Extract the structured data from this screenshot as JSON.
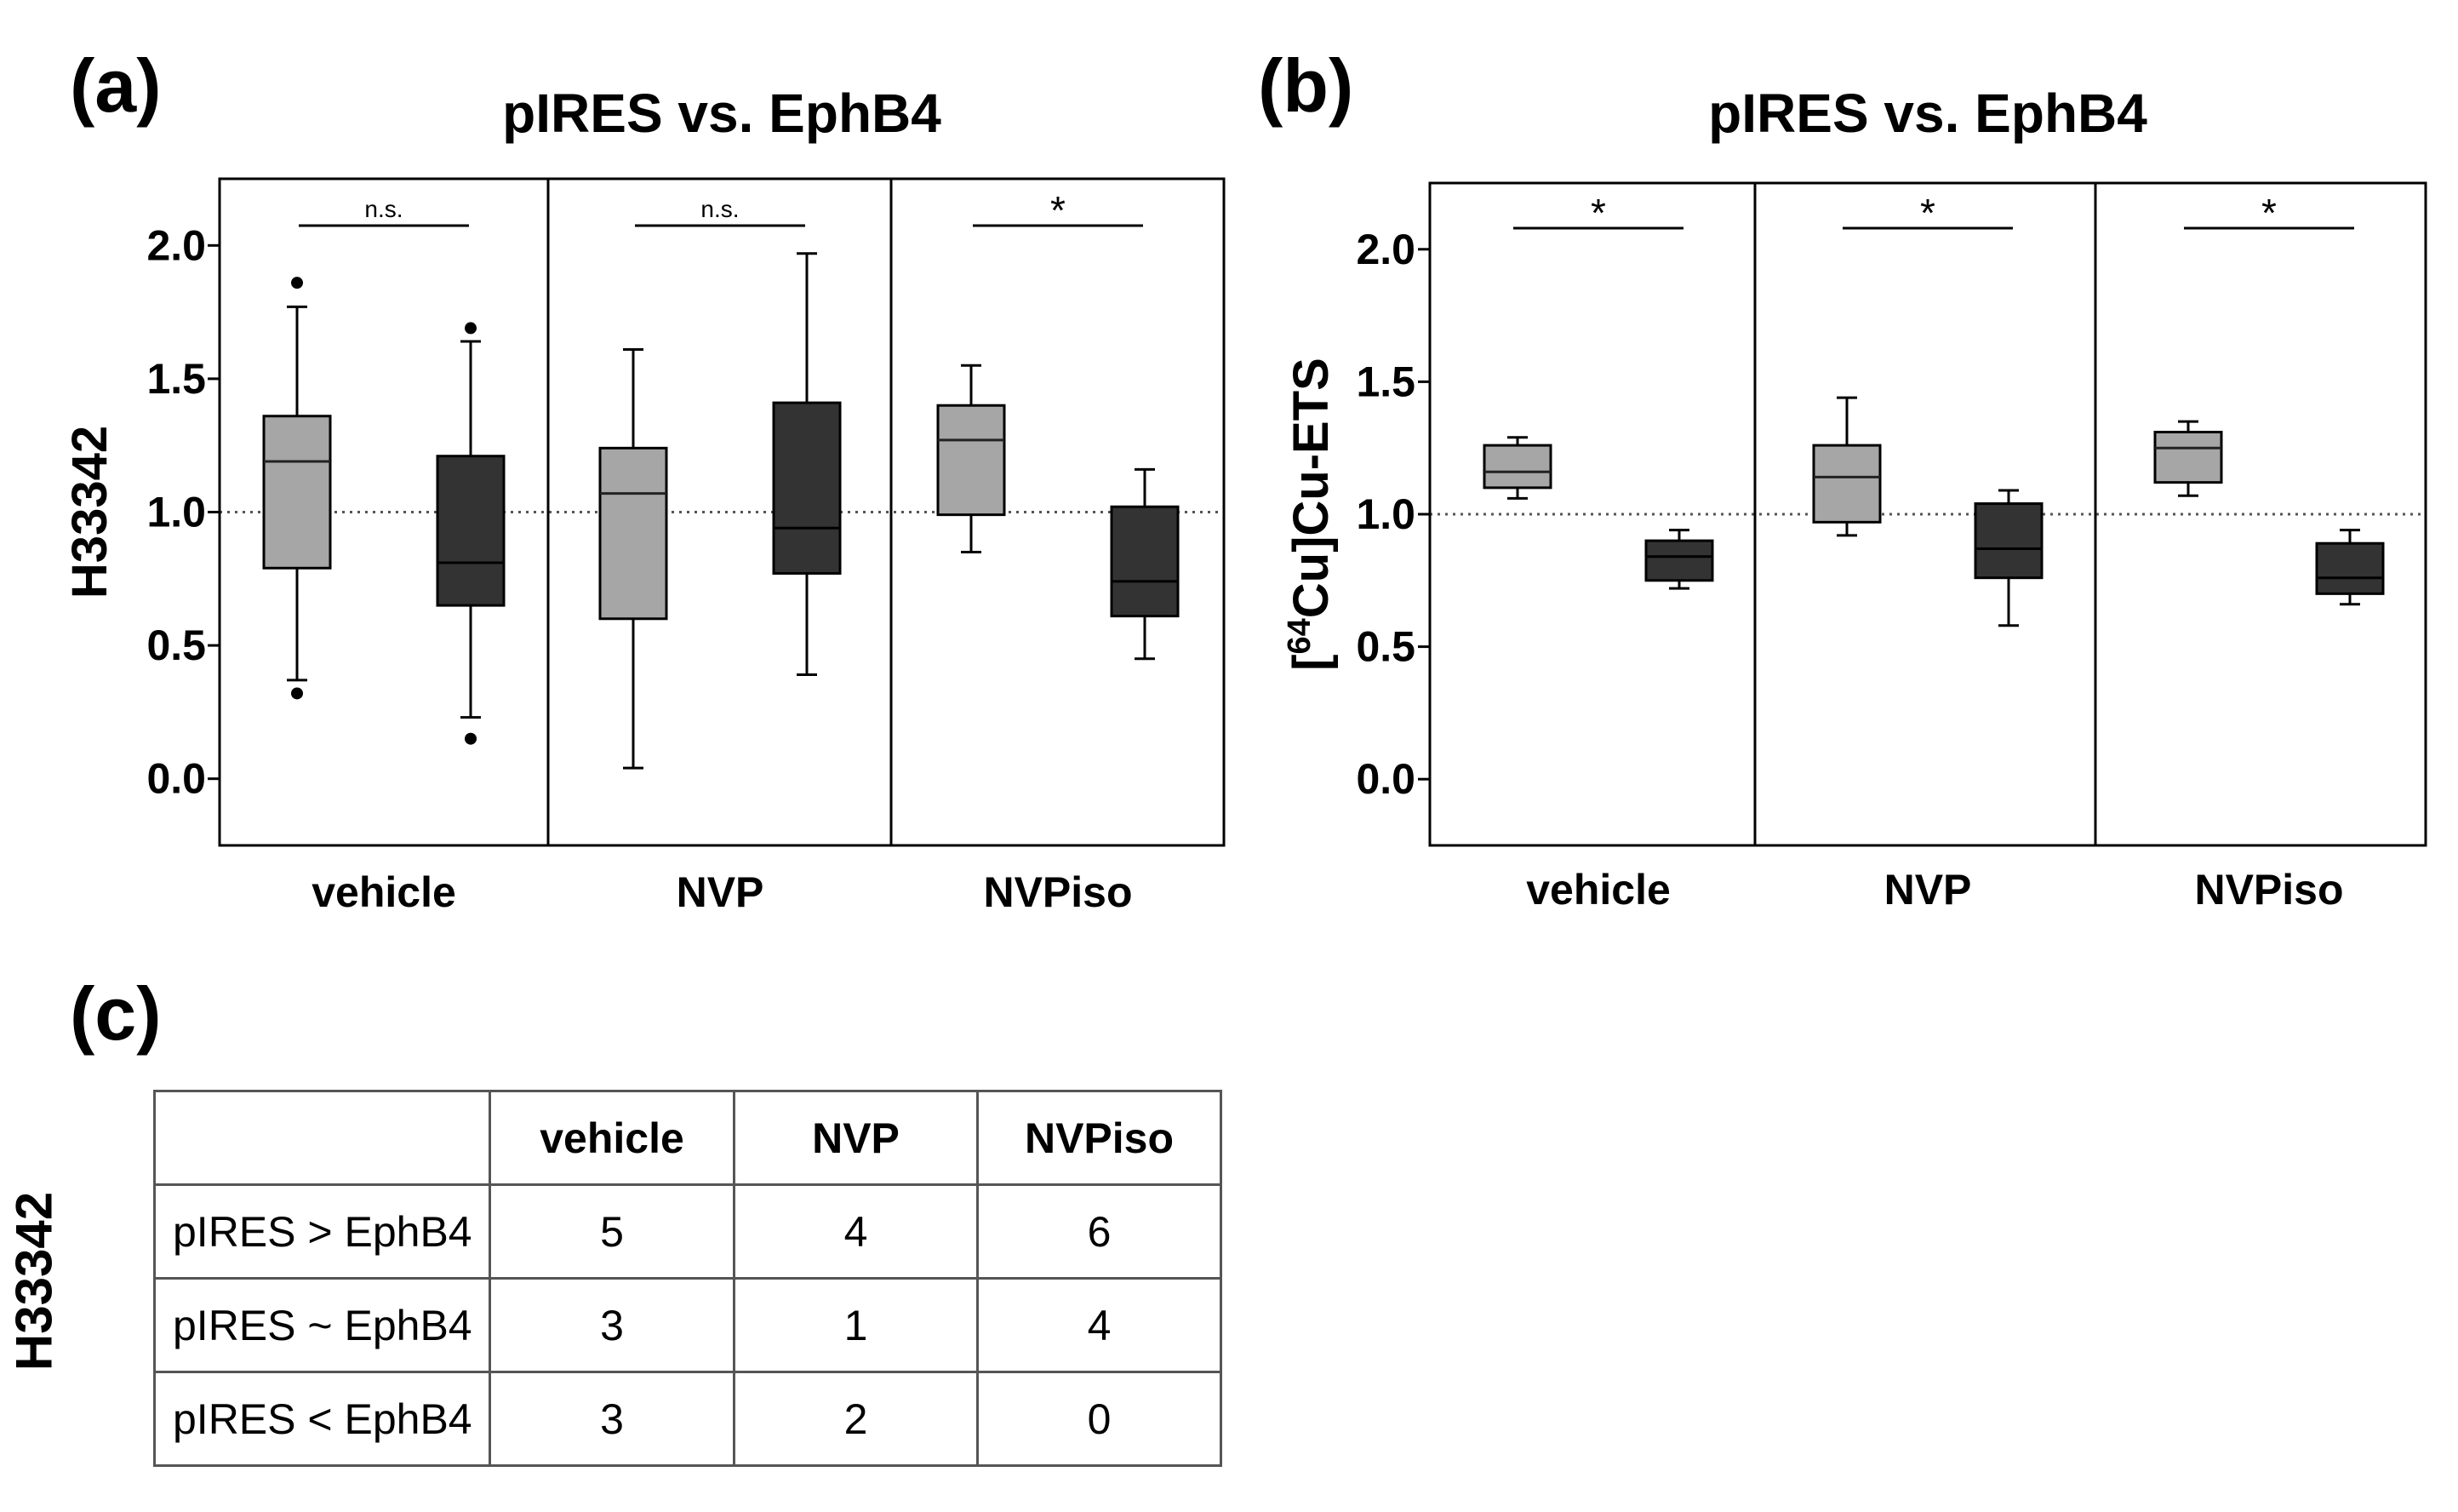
{
  "panels": {
    "a": {
      "label": "(a)"
    },
    "b": {
      "label": "(b)"
    },
    "c": {
      "label": "(c)"
    }
  },
  "chart_data": [
    {
      "id": "a",
      "type": "box",
      "title": "pIRES vs. EphB4",
      "ylabel": "H33342",
      "xlabel": "",
      "ylim": [
        -0.25,
        2.25
      ],
      "yticks": [
        0.0,
        0.5,
        1.0,
        1.5,
        2.0
      ],
      "ytick_labels": [
        "0.0",
        "0.5",
        "1.0",
        "1.5",
        "2.0"
      ],
      "reference_line": 1.0,
      "series_colors": {
        "pIRES": "#a6a6a6",
        "EphB4": "#333333"
      },
      "groups": [
        {
          "name": "vehicle",
          "significance": "n.s.",
          "boxes": [
            {
              "series": "pIRES",
              "min": 0.37,
              "q1": 0.79,
              "median": 1.19,
              "q3": 1.36,
              "max": 1.77,
              "outliers": [
                1.86,
                0.32
              ]
            },
            {
              "series": "EphB4",
              "min": 0.23,
              "q1": 0.65,
              "median": 0.81,
              "q3": 1.21,
              "max": 1.64,
              "outliers": [
                1.69,
                0.15
              ]
            }
          ]
        },
        {
          "name": "NVP",
          "significance": "n.s.",
          "boxes": [
            {
              "series": "pIRES",
              "min": 0.04,
              "q1": 0.6,
              "median": 1.07,
              "q3": 1.24,
              "max": 1.61,
              "outliers": []
            },
            {
              "series": "EphB4",
              "min": 0.39,
              "q1": 0.77,
              "median": 0.94,
              "q3": 1.41,
              "max": 1.97,
              "outliers": []
            }
          ]
        },
        {
          "name": "NVPiso",
          "significance": "*",
          "boxes": [
            {
              "series": "pIRES",
              "min": 0.85,
              "q1": 0.99,
              "median": 1.27,
              "q3": 1.4,
              "max": 1.55,
              "outliers": []
            },
            {
              "series": "EphB4",
              "min": 0.45,
              "q1": 0.61,
              "median": 0.74,
              "q3": 1.02,
              "max": 1.16,
              "outliers": []
            }
          ]
        }
      ]
    },
    {
      "id": "b",
      "type": "box",
      "title": "pIRES vs. EphB4",
      "ylabel": "[64Cu]Cu-ETS",
      "ylabel_parts": [
        "[",
        "64",
        "Cu]Cu-ETS"
      ],
      "xlabel": "",
      "ylim": [
        -0.25,
        2.25
      ],
      "yticks": [
        0.0,
        0.5,
        1.0,
        1.5,
        2.0
      ],
      "ytick_labels": [
        "0.0",
        "0.5",
        "1.0",
        "1.5",
        "2.0"
      ],
      "reference_line": 1.0,
      "series_colors": {
        "pIRES": "#a6a6a6",
        "EphB4": "#333333"
      },
      "groups": [
        {
          "name": "vehicle",
          "significance": "*",
          "boxes": [
            {
              "series": "pIRES",
              "min": 1.06,
              "q1": 1.1,
              "median": 1.16,
              "q3": 1.26,
              "max": 1.29,
              "outliers": []
            },
            {
              "series": "EphB4",
              "min": 0.72,
              "q1": 0.75,
              "median": 0.84,
              "q3": 0.9,
              "max": 0.94,
              "outliers": []
            }
          ]
        },
        {
          "name": "NVP",
          "significance": "*",
          "boxes": [
            {
              "series": "pIRES",
              "min": 0.92,
              "q1": 0.97,
              "median": 1.14,
              "q3": 1.26,
              "max": 1.44,
              "outliers": []
            },
            {
              "series": "EphB4",
              "min": 0.58,
              "q1": 0.76,
              "median": 0.87,
              "q3": 1.04,
              "max": 1.09,
              "outliers": []
            }
          ]
        },
        {
          "name": "NVPiso",
          "significance": "*",
          "boxes": [
            {
              "series": "pIRES",
              "min": 1.07,
              "q1": 1.12,
              "median": 1.25,
              "q3": 1.31,
              "max": 1.35,
              "outliers": []
            },
            {
              "series": "EphB4",
              "min": 0.66,
              "q1": 0.7,
              "median": 0.76,
              "q3": 0.89,
              "max": 0.94,
              "outliers": []
            }
          ]
        }
      ]
    },
    {
      "id": "c",
      "type": "table",
      "ylabel": "H33342",
      "columns": [
        "",
        "vehicle",
        "NVP",
        "NVPiso"
      ],
      "rows": [
        {
          "label": "pIRES > EphB4",
          "values": [
            "5",
            "4",
            "6"
          ]
        },
        {
          "label": "pIRES ~ EphB4",
          "values": [
            "3",
            "1",
            "4"
          ]
        },
        {
          "label": "pIRES < EphB4",
          "values": [
            "3",
            "2",
            "0"
          ]
        }
      ]
    }
  ]
}
